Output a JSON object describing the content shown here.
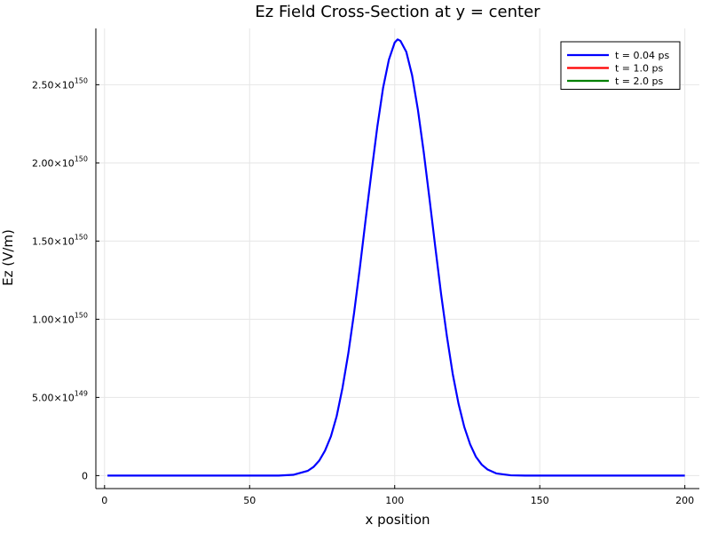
{
  "chart_data": {
    "type": "line",
    "title": "Ez Field Cross-Section at y = center",
    "xlabel": "x position",
    "ylabel": "Ez (V/m)",
    "xlim": [
      -3,
      205
    ],
    "ylim": [
      -8.3e+148,
      2.86e+150
    ],
    "grid": true,
    "legend_position": "top-right",
    "x_ticks": [
      {
        "value": 0,
        "label": "0"
      },
      {
        "value": 50,
        "label": "50"
      },
      {
        "value": 100,
        "label": "100"
      },
      {
        "value": 150,
        "label": "150"
      },
      {
        "value": 200,
        "label": "200"
      }
    ],
    "y_ticks": [
      {
        "value": 0,
        "mantissa": "0",
        "exponent": ""
      },
      {
        "value": 5e+149,
        "mantissa": "5.00×10",
        "exponent": "149"
      },
      {
        "value": 1e+150,
        "mantissa": "1.00×10",
        "exponent": "150"
      },
      {
        "value": 1.5e+150,
        "mantissa": "1.50×10",
        "exponent": "150"
      },
      {
        "value": 2e+150,
        "mantissa": "2.00×10",
        "exponent": "150"
      },
      {
        "value": 2.5e+150,
        "mantissa": "2.50×10",
        "exponent": "150"
      }
    ],
    "series": [
      {
        "name": "t = 0.04 ps",
        "color": "#0000ff",
        "x": [
          1,
          10,
          20,
          30,
          40,
          50,
          55,
          60,
          65,
          70,
          72,
          74,
          76,
          78,
          80,
          82,
          84,
          86,
          88,
          90,
          92,
          94,
          96,
          98,
          100,
          101,
          102,
          104,
          106,
          108,
          110,
          112,
          114,
          116,
          118,
          120,
          122,
          124,
          126,
          128,
          130,
          132,
          135,
          140,
          145,
          150,
          160,
          170,
          180,
          190,
          200
        ],
        "y": [
          0,
          0,
          0,
          0,
          0,
          0,
          0,
          1e+146,
          5e+147,
          3e+148,
          5.5e+148,
          9.6e+148,
          1.6e+149,
          2.5e+149,
          3.8e+149,
          5.6e+149,
          7.8e+149,
          1.04e+150,
          1.33e+150,
          1.64e+150,
          1.94e+150,
          2.23e+150,
          2.48e+150,
          2.66e+150,
          2.77e+150,
          2.79e+150,
          2.78e+150,
          2.71e+150,
          2.56e+150,
          2.34e+150,
          2.07e+150,
          1.77e+150,
          1.46e+150,
          1.16e+150,
          8.9e+149,
          6.5e+149,
          4.6e+149,
          3.1e+149,
          2e+149,
          1.2e+149,
          7e+148,
          3.9e+148,
          1.4e+148,
          2e+147,
          1e+146,
          0,
          0,
          0,
          0,
          0,
          0
        ]
      },
      {
        "name": "t = 1.0 ps",
        "color": "#ff0000",
        "x": [],
        "y": []
      },
      {
        "name": "t = 2.0 ps",
        "color": "#008000",
        "x": [],
        "y": []
      }
    ]
  }
}
